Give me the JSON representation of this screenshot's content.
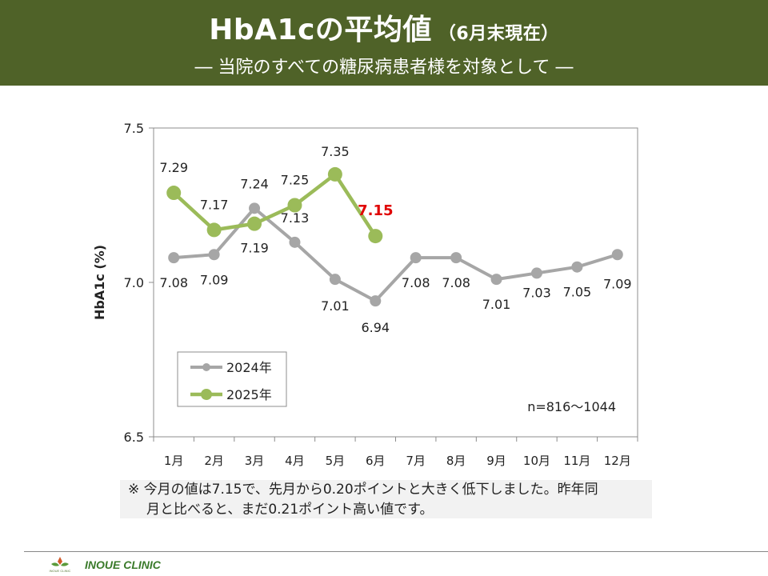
{
  "header": {
    "title": "HbA1cの平均値",
    "title_suffix": "（6月末現在）",
    "subtitle": "―  当院のすべての糖尿病患者様を対象として  ―"
  },
  "chart_data": {
    "type": "line",
    "categories": [
      "1月",
      "2月",
      "3月",
      "4月",
      "5月",
      "6月",
      "7月",
      "8月",
      "9月",
      "10月",
      "11月",
      "12月"
    ],
    "series": [
      {
        "name": "2024年",
        "color": "#a6a6a6",
        "values": [
          7.08,
          7.09,
          7.24,
          7.13,
          7.01,
          6.94,
          7.08,
          7.08,
          7.01,
          7.03,
          7.05,
          7.09
        ]
      },
      {
        "name": "2025年",
        "color": "#9bbb59",
        "values": [
          7.29,
          7.17,
          7.19,
          7.25,
          7.35,
          7.15,
          null,
          null,
          null,
          null,
          null,
          null
        ]
      }
    ],
    "ylabel": "HbA1c (%)",
    "xlabel": "",
    "ylim": [
      6.5,
      7.5
    ],
    "yticks": [
      "7.5",
      "7.0",
      "6.5"
    ],
    "grid": false,
    "legend_position": "lower-left",
    "highlight": {
      "series": "2025年",
      "index": 5,
      "label": "7.15",
      "color": "#e00000"
    },
    "annotation": "n=816～1044"
  },
  "note": {
    "line1": "※ 今月の値は7.15で、先月から0.20ポイントと大きく低下しました。昨年同",
    "line2": "月と比べると、まだ0.21ポイント高い値です。"
  },
  "footer": {
    "clinic": "INOUE CLINIC",
    "logo_text": "INOUE CLINIC"
  }
}
